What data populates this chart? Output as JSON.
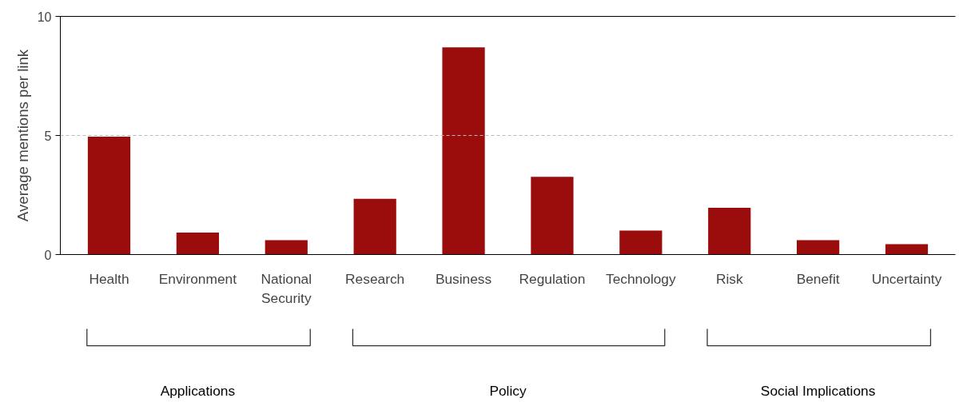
{
  "chart_data": {
    "type": "bar",
    "ylabel": "Average mentions per link",
    "categories": [
      "Health",
      "Environment",
      "National Security",
      "Research",
      "Business",
      "Regulation",
      "Technology",
      "Risk",
      "Benefit",
      "Uncertainty"
    ],
    "values": [
      4.95,
      0.92,
      0.6,
      2.34,
      8.7,
      3.26,
      1.01,
      1.96,
      0.6,
      0.44
    ],
    "color": "#9b0c0c",
    "ylim": [
      0,
      10
    ],
    "yticks": [
      0,
      5,
      10
    ],
    "grid": false,
    "ref_lines": [
      {
        "axis": "y",
        "value": 5,
        "color": "#bbbbbb",
        "line_style": "dashed"
      }
    ],
    "annotations": [
      "Applications",
      "Policy",
      "Social Implications"
    ]
  }
}
